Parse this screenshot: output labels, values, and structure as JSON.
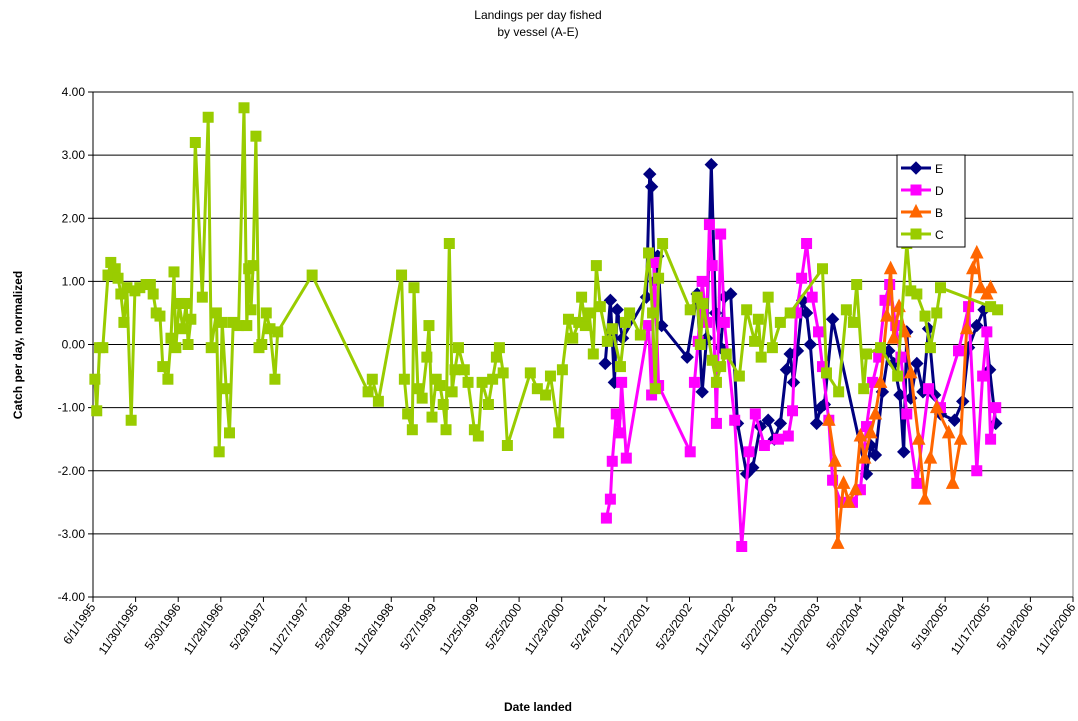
{
  "chart_data": {
    "type": "line",
    "title": "Landings per day fished",
    "subtitle": "by vessel (A-E)",
    "x_label": "Date landed",
    "y_label": "Catch per day, normalized",
    "xlim": [
      "1995-06-01",
      "2006-11-16"
    ],
    "xticks": [
      {
        "value": "1995-06-01",
        "label": "6/1/1995"
      },
      {
        "value": "1995-11-30",
        "label": "11/30/1995"
      },
      {
        "value": "1996-05-30",
        "label": "5/30/1996"
      },
      {
        "value": "1996-11-28",
        "label": "11/28/1996"
      },
      {
        "value": "1997-05-29",
        "label": "5/29/1997"
      },
      {
        "value": "1997-11-27",
        "label": "11/27/1997"
      },
      {
        "value": "1998-05-28",
        "label": "5/28/1998"
      },
      {
        "value": "1998-11-26",
        "label": "11/26/1998"
      },
      {
        "value": "1999-05-27",
        "label": "5/27/1999"
      },
      {
        "value": "1999-11-25",
        "label": "11/25/1999"
      },
      {
        "value": "2000-05-25",
        "label": "5/25/2000"
      },
      {
        "value": "2000-11-23",
        "label": "11/23/2000"
      },
      {
        "value": "2001-05-24",
        "label": "5/24/2001"
      },
      {
        "value": "2001-11-22",
        "label": "11/22/2001"
      },
      {
        "value": "2002-05-23",
        "label": "5/23/2002"
      },
      {
        "value": "2002-11-21",
        "label": "11/21/2002"
      },
      {
        "value": "2003-05-22",
        "label": "5/22/2003"
      },
      {
        "value": "2003-11-20",
        "label": "11/20/2003"
      },
      {
        "value": "2004-05-20",
        "label": "5/20/2004"
      },
      {
        "value": "2004-11-18",
        "label": "11/18/2004"
      },
      {
        "value": "2005-05-19",
        "label": "5/19/2005"
      },
      {
        "value": "2005-11-17",
        "label": "11/17/2005"
      },
      {
        "value": "2006-05-18",
        "label": "5/18/2006"
      },
      {
        "value": "2006-11-16",
        "label": "11/16/2006"
      }
    ],
    "ylim": [
      -4,
      4
    ],
    "yticks": [
      {
        "value": -4,
        "label": "-4.00"
      },
      {
        "value": -3,
        "label": "-3.00"
      },
      {
        "value": -2,
        "label": "-2.00"
      },
      {
        "value": -1,
        "label": "-1.00"
      },
      {
        "value": 0,
        "label": "0.00"
      },
      {
        "value": 1,
        "label": "1.00"
      },
      {
        "value": 2,
        "label": "2.00"
      },
      {
        "value": 3,
        "label": "3.00"
      },
      {
        "value": 4,
        "label": "4.00"
      }
    ],
    "grid": true,
    "legend_position": "upper right",
    "series": [
      {
        "name": "E",
        "color": "#000080",
        "marker": "diamond",
        "x": [
          "2001-05-28",
          "2001-06-19",
          "2001-07-06",
          "2001-07-18",
          "2001-08-10",
          "2001-11-20",
          "2001-12-04",
          "2001-12-12",
          "2001-12-24",
          "2002-01-07",
          "2002-01-24",
          "2002-05-13",
          "2002-06-25",
          "2002-07-16",
          "2002-08-04",
          "2002-08-24",
          "2002-09-11",
          "2002-10-03",
          "2002-10-19",
          "2002-11-15",
          "2002-12-14",
          "2003-01-22",
          "2003-02-17",
          "2003-03-21",
          "2003-04-24",
          "2003-05-20",
          "2003-06-15",
          "2003-07-11",
          "2003-07-27",
          "2003-08-10",
          "2003-08-27",
          "2003-09-18",
          "2003-10-05",
          "2003-10-21",
          "2003-11-17",
          "2003-12-04",
          "2003-12-20",
          "2004-01-24",
          "2004-06-17",
          "2004-07-05",
          "2004-07-25",
          "2004-08-24",
          "2004-09-20",
          "2004-10-11",
          "2004-11-07",
          "2004-11-23",
          "2004-12-06",
          "2004-12-23",
          "2005-01-18",
          "2005-02-13",
          "2005-03-09",
          "2005-04-04",
          "2005-04-29",
          "2005-06-28",
          "2005-08-02",
          "2005-08-27",
          "2005-10-01",
          "2005-11-01",
          "2005-11-25",
          "2005-12-21"
        ],
        "values": [
          -0.3,
          0.7,
          -0.6,
          0.55,
          0.1,
          0.75,
          2.7,
          2.5,
          1.0,
          1.4,
          0.3,
          -0.2,
          0.8,
          -0.75,
          0.1,
          2.85,
          0.5,
          -0.05,
          0.75,
          0.8,
          -1.25,
          -2.05,
          -1.95,
          -1.3,
          -1.2,
          -1.5,
          -1.25,
          -0.4,
          -0.15,
          -0.6,
          -0.1,
          0.7,
          0.5,
          0.0,
          -1.25,
          -1.0,
          -0.95,
          0.4,
          -2.05,
          -1.6,
          -1.75,
          -0.75,
          -0.1,
          -0.3,
          -0.8,
          -1.7,
          0.2,
          -0.85,
          -0.3,
          -0.75,
          0.25,
          -0.8,
          -1.1,
          -1.2,
          -0.9,
          -0.05,
          0.3,
          0.55,
          -0.4,
          -1.25
        ]
      },
      {
        "name": "D",
        "color": "#ff00ff",
        "marker": "square",
        "x": [
          "2001-06-02",
          "2001-06-19",
          "2001-06-27",
          "2001-07-14",
          "2001-07-27",
          "2001-08-06",
          "2001-08-26",
          "2001-11-29",
          "2001-12-12",
          "2001-12-24",
          "2002-01-11",
          "2002-05-26",
          "2002-06-13",
          "2002-06-29",
          "2002-07-16",
          "2002-08-04",
          "2002-08-16",
          "2002-08-28",
          "2002-09-15",
          "2002-10-03",
          "2002-10-19",
          "2002-12-02",
          "2003-01-01",
          "2003-02-01",
          "2003-02-28",
          "2003-04-08",
          "2003-06-07",
          "2003-07-19",
          "2003-08-06",
          "2003-08-22",
          "2003-09-14",
          "2003-10-05",
          "2003-10-29",
          "2003-11-25",
          "2003-12-12",
          "2004-01-08",
          "2004-01-24",
          "2004-02-28",
          "2004-04-18",
          "2004-05-22",
          "2004-06-17",
          "2004-07-13",
          "2004-08-08",
          "2004-09-04",
          "2004-09-24",
          "2004-10-20",
          "2004-11-11",
          "2004-12-06",
          "2005-01-18",
          "2005-03-09",
          "2005-04-29",
          "2005-07-15",
          "2005-08-27",
          "2005-10-01",
          "2005-10-26",
          "2005-11-13",
          "2005-11-29",
          "2005-12-21"
        ],
        "values": [
          -2.75,
          -2.45,
          -1.85,
          -1.1,
          -1.4,
          -0.6,
          -1.8,
          0.3,
          -0.8,
          1.3,
          -0.65,
          -1.7,
          -0.6,
          0.05,
          1.0,
          0.35,
          1.9,
          1.25,
          -1.25,
          1.75,
          0.35,
          -1.2,
          -3.2,
          -1.7,
          -1.1,
          -1.6,
          -1.5,
          -1.45,
          -1.05,
          0.5,
          1.05,
          1.6,
          0.75,
          0.2,
          -0.35,
          -1.2,
          -2.15,
          -2.5,
          -2.5,
          -2.3,
          -1.3,
          -0.6,
          -0.2,
          0.7,
          0.95,
          0.3,
          -0.2,
          -1.1,
          -2.2,
          -0.7,
          -1.0,
          -0.1,
          0.6,
          -2.0,
          -0.5,
          0.2,
          -1.5,
          -1.0
        ]
      },
      {
        "name": "B",
        "color": "#ff6600",
        "marker": "triangle",
        "x": [
          "2004-01-08",
          "2004-02-03",
          "2004-02-15",
          "2004-03-11",
          "2004-04-02",
          "2004-05-01",
          "2004-05-22",
          "2004-06-09",
          "2004-07-05",
          "2004-07-25",
          "2004-08-16",
          "2004-09-12",
          "2004-09-28",
          "2004-10-11",
          "2004-11-03",
          "2004-11-27",
          "2004-12-23",
          "2005-01-26",
          "2005-02-21",
          "2005-03-17",
          "2005-04-13",
          "2005-06-03",
          "2005-06-20",
          "2005-07-24",
          "2005-08-19",
          "2005-09-14",
          "2005-10-01",
          "2005-10-18",
          "2005-11-13",
          "2005-11-29"
        ],
        "values": [
          -1.2,
          -1.85,
          -3.15,
          -2.2,
          -2.5,
          -2.3,
          -1.45,
          -1.8,
          -1.4,
          -1.1,
          -0.6,
          0.45,
          1.2,
          0.1,
          0.6,
          0.2,
          -0.45,
          -1.5,
          -2.45,
          -1.8,
          -1.0,
          -1.4,
          -2.2,
          -1.5,
          0.25,
          1.2,
          1.45,
          0.9,
          0.8,
          0.9
        ]
      },
      {
        "name": "C",
        "color": "#99cc00",
        "marker": "square",
        "x": [
          "1995-06-09",
          "1995-06-17",
          "1995-06-29",
          "1995-07-13",
          "1995-08-04",
          "1995-08-16",
          "1995-09-04",
          "1995-09-16",
          "1995-09-28",
          "1995-10-11",
          "1995-10-24",
          "1995-11-11",
          "1995-11-27",
          "1995-12-18",
          "1996-01-14",
          "1996-02-01",
          "1996-02-13",
          "1996-02-26",
          "1996-03-13",
          "1996-03-25",
          "1996-04-16",
          "1996-04-29",
          "1996-05-12",
          "1996-05-20",
          "1996-06-03",
          "1996-06-19",
          "1996-07-03",
          "1996-07-11",
          "1996-07-23",
          "1996-08-11",
          "1996-09-10",
          "1996-10-05",
          "1996-10-18",
          "1996-11-09",
          "1996-11-21",
          "1996-12-04",
          "1996-12-21",
          "1997-01-04",
          "1997-01-20",
          "1997-02-12",
          "1997-03-07",
          "1997-03-19",
          "1997-03-27",
          "1997-04-06",
          "1997-04-15",
          "1997-04-27",
          "1997-05-10",
          "1997-05-22",
          "1997-06-10",
          "1997-06-26",
          "1997-07-17",
          "1997-07-29",
          "1997-12-23",
          "1998-08-19",
          "1998-09-06",
          "1998-10-02",
          "1999-01-09",
          "1999-01-21",
          "1999-02-04",
          "1999-02-24",
          "1999-03-03",
          "1999-03-20",
          "1999-04-07",
          "1999-04-27",
          "1999-05-06",
          "1999-05-19",
          "1999-06-06",
          "1999-06-22",
          "1999-07-06",
          "1999-07-18",
          "1999-08-01",
          "1999-08-13",
          "1999-08-25",
          "1999-09-09",
          "1999-10-04",
          "1999-10-20",
          "1999-11-16",
          "1999-12-03",
          "1999-12-19",
          "2000-01-15",
          "2000-02-02",
          "2000-02-18",
          "2000-03-02",
          "2000-03-18",
          "2000-04-05",
          "2000-07-12",
          "2000-08-11",
          "2000-09-15",
          "2000-10-06",
          "2000-11-10",
          "2000-11-26",
          "2000-12-22",
          "2001-01-09",
          "2001-02-04",
          "2001-02-16",
          "2001-03-04",
          "2001-03-20",
          "2001-04-07",
          "2001-04-20",
          "2001-05-07",
          "2001-06-06",
          "2001-06-27",
          "2001-08-01",
          "2001-08-22",
          "2001-09-09",
          "2001-10-25",
          "2001-11-29",
          "2001-12-16",
          "2001-12-28",
          "2002-01-11",
          "2002-01-28",
          "2002-05-26",
          "2002-06-25",
          "2002-07-08",
          "2002-07-20",
          "2002-08-28",
          "2002-09-15",
          "2002-10-03",
          "2002-10-27",
          "2002-12-22",
          "2003-01-22",
          "2003-02-25",
          "2003-03-13",
          "2003-03-25",
          "2003-04-24",
          "2003-05-12",
          "2003-06-15",
          "2003-07-27",
          "2003-12-12",
          "2003-12-29",
          "2004-02-19",
          "2004-03-23",
          "2004-04-22",
          "2004-05-06",
          "2004-06-05",
          "2004-06-17",
          "2004-08-16",
          "2004-10-28",
          "2004-12-06",
          "2004-12-23",
          "2005-01-18",
          "2005-02-22",
          "2005-03-17",
          "2005-04-13",
          "2005-04-29",
          "2005-11-29",
          "2005-12-29"
        ],
        "values": [
          -0.55,
          -1.05,
          -0.05,
          -0.05,
          1.1,
          1.3,
          1.2,
          1.05,
          0.8,
          0.35,
          0.9,
          -1.2,
          0.85,
          0.9,
          0.95,
          0.95,
          0.8,
          0.5,
          0.45,
          -0.35,
          -0.55,
          0.1,
          1.15,
          -0.05,
          0.65,
          0.25,
          0.65,
          0.0,
          0.4,
          3.2,
          0.75,
          3.6,
          -0.05,
          0.5,
          -1.7,
          0.35,
          -0.7,
          -1.4,
          0.35,
          0.3,
          3.75,
          0.3,
          1.2,
          0.55,
          1.25,
          3.3,
          -0.05,
          0.0,
          0.5,
          0.25,
          -0.55,
          0.2,
          1.1,
          -0.75,
          -0.55,
          -0.9,
          1.1,
          -0.55,
          -1.1,
          -1.35,
          0.9,
          -0.7,
          -0.85,
          -0.2,
          0.3,
          -1.15,
          -0.55,
          -0.65,
          -0.95,
          -1.35,
          1.6,
          -0.75,
          -0.4,
          -0.05,
          -0.4,
          -0.6,
          -1.35,
          -1.45,
          -0.6,
          -0.95,
          -0.55,
          -0.2,
          -0.05,
          -0.45,
          -1.6,
          -0.45,
          -0.7,
          -0.8,
          -0.5,
          -1.4,
          -0.4,
          0.4,
          0.1,
          0.35,
          0.75,
          0.3,
          0.5,
          -0.15,
          1.25,
          0.6,
          0.05,
          0.25,
          -0.35,
          0.35,
          0.5,
          0.15,
          1.45,
          0.5,
          -0.7,
          1.05,
          1.6,
          0.55,
          0.75,
          0.0,
          0.65,
          -0.25,
          -0.6,
          -0.35,
          -0.15,
          -0.5,
          0.55,
          0.05,
          0.4,
          -0.2,
          0.75,
          -0.05,
          0.35,
          0.5,
          1.2,
          -0.45,
          -0.75,
          0.55,
          0.35,
          0.95,
          -0.7,
          -0.15,
          -0.05,
          -0.5,
          1.6,
          0.85,
          0.8,
          0.45,
          -0.05,
          0.5,
          0.9,
          0.6,
          0.55
        ]
      }
    ]
  }
}
